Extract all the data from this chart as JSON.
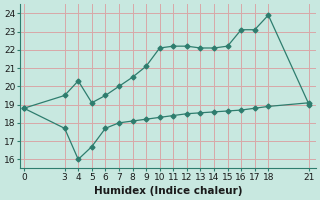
{
  "line1_x": [
    0,
    3,
    4,
    5,
    6,
    7,
    8,
    9,
    10,
    11,
    12,
    13,
    14,
    15,
    16,
    17,
    18,
    21
  ],
  "line1_y": [
    18.8,
    19.5,
    20.3,
    19.1,
    19.5,
    20.0,
    20.5,
    21.1,
    22.1,
    22.2,
    22.2,
    22.1,
    22.1,
    22.2,
    23.1,
    23.1,
    23.9,
    19.0
  ],
  "line2_x": [
    0,
    3,
    4,
    5,
    6,
    7,
    8,
    9,
    10,
    11,
    12,
    13,
    14,
    15,
    16,
    17,
    18,
    21
  ],
  "line2_y": [
    18.8,
    17.7,
    16.0,
    16.7,
    17.7,
    18.0,
    18.1,
    18.2,
    18.3,
    18.4,
    18.5,
    18.55,
    18.6,
    18.65,
    18.7,
    18.8,
    18.9,
    19.1
  ],
  "line_color": "#2e7d6e",
  "bg_color": "#c8e8e0",
  "grid_color": "#d8a8a8",
  "xlabel": "Humidex (Indice chaleur)",
  "ylim": [
    15.5,
    24.5
  ],
  "xlim": [
    -0.3,
    21.5
  ],
  "yticks": [
    16,
    17,
    18,
    19,
    20,
    21,
    22,
    23,
    24
  ],
  "xticks": [
    0,
    3,
    4,
    5,
    6,
    7,
    8,
    9,
    10,
    11,
    12,
    13,
    14,
    15,
    16,
    17,
    18,
    21
  ],
  "tick_fontsize": 6.5,
  "xlabel_fontsize": 7.5
}
